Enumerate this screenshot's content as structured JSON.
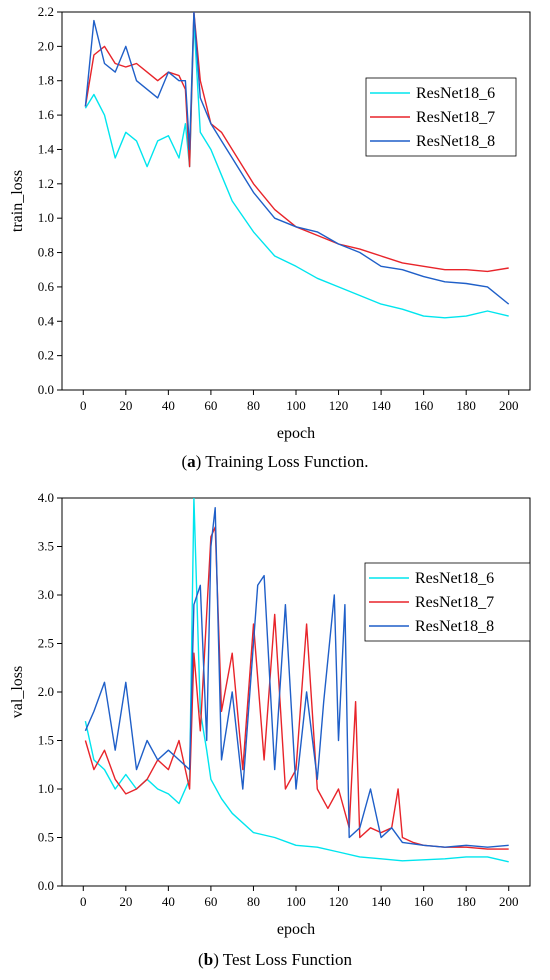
{
  "captions": [
    {
      "tag": "a",
      "text": "Training Loss Function."
    },
    {
      "tag": "b",
      "text": "Test Loss Function"
    }
  ],
  "series_colors": {
    "ResNet18_6": "#00e5ee",
    "ResNet18_7": "#e8242a",
    "ResNet18_8": "#1f5fc8"
  },
  "chart_data": [
    {
      "type": "line",
      "title": "",
      "xlabel": "epoch",
      "ylabel": "train_loss",
      "xlim": [
        -10,
        210
      ],
      "ylim": [
        0,
        2.2
      ],
      "xticks": [
        0,
        20,
        40,
        60,
        80,
        100,
        120,
        140,
        160,
        180,
        200
      ],
      "yticks": [
        0.0,
        0.2,
        0.4,
        0.6,
        0.8,
        1.0,
        1.2,
        1.4,
        1.6,
        1.8,
        2.0,
        2.2
      ],
      "legend": "top-right",
      "grid": false,
      "series": [
        {
          "name": "ResNet18_6",
          "x": [
            1,
            5,
            10,
            15,
            20,
            25,
            30,
            35,
            40,
            45,
            48,
            50,
            52,
            55,
            60,
            65,
            70,
            80,
            90,
            100,
            110,
            120,
            130,
            140,
            150,
            160,
            170,
            180,
            190,
            200
          ],
          "y": [
            1.64,
            1.72,
            1.6,
            1.35,
            1.5,
            1.45,
            1.3,
            1.45,
            1.48,
            1.35,
            1.55,
            1.3,
            2.15,
            1.5,
            1.4,
            1.25,
            1.1,
            0.92,
            0.78,
            0.72,
            0.65,
            0.6,
            0.55,
            0.5,
            0.47,
            0.43,
            0.42,
            0.43,
            0.46,
            0.43
          ]
        },
        {
          "name": "ResNet18_7",
          "x": [
            1,
            5,
            10,
            15,
            20,
            25,
            30,
            35,
            40,
            45,
            48,
            50,
            52,
            55,
            60,
            65,
            70,
            80,
            90,
            100,
            110,
            120,
            130,
            140,
            150,
            160,
            170,
            180,
            190,
            200
          ],
          "y": [
            1.65,
            1.95,
            2.0,
            1.9,
            1.88,
            1.9,
            1.85,
            1.8,
            1.85,
            1.83,
            1.75,
            1.3,
            2.2,
            1.8,
            1.55,
            1.5,
            1.4,
            1.2,
            1.05,
            0.95,
            0.9,
            0.85,
            0.82,
            0.78,
            0.74,
            0.72,
            0.7,
            0.7,
            0.69,
            0.71
          ]
        },
        {
          "name": "ResNet18_8",
          "x": [
            1,
            5,
            10,
            15,
            20,
            25,
            30,
            35,
            40,
            45,
            48,
            50,
            52,
            55,
            60,
            65,
            70,
            80,
            90,
            100,
            110,
            120,
            130,
            140,
            150,
            160,
            170,
            180,
            190,
            200
          ],
          "y": [
            1.65,
            2.15,
            1.9,
            1.85,
            2.0,
            1.8,
            1.75,
            1.7,
            1.85,
            1.8,
            1.8,
            1.4,
            2.2,
            1.7,
            1.55,
            1.45,
            1.35,
            1.15,
            1.0,
            0.95,
            0.92,
            0.85,
            0.8,
            0.72,
            0.7,
            0.66,
            0.63,
            0.62,
            0.6,
            0.5
          ]
        }
      ]
    },
    {
      "type": "line",
      "title": "",
      "xlabel": "epoch",
      "ylabel": "val_loss",
      "xlim": [
        -10,
        210
      ],
      "ylim": [
        0,
        4.0
      ],
      "xticks": [
        0,
        20,
        40,
        60,
        80,
        100,
        120,
        140,
        160,
        180,
        200
      ],
      "yticks": [
        0.0,
        0.5,
        1.0,
        1.5,
        2.0,
        2.5,
        3.0,
        3.5,
        4.0
      ],
      "legend": "top-right",
      "grid": false,
      "series": [
        {
          "name": "ResNet18_6",
          "x": [
            1,
            5,
            10,
            15,
            20,
            25,
            30,
            35,
            40,
            45,
            50,
            52,
            55,
            58,
            60,
            65,
            70,
            80,
            90,
            100,
            110,
            120,
            130,
            140,
            150,
            160,
            170,
            180,
            190,
            200
          ],
          "y": [
            1.7,
            1.3,
            1.2,
            1.0,
            1.15,
            1.0,
            1.1,
            1.0,
            0.95,
            0.85,
            1.1,
            4.0,
            1.8,
            1.4,
            1.1,
            0.9,
            0.75,
            0.55,
            0.5,
            0.42,
            0.4,
            0.35,
            0.3,
            0.28,
            0.26,
            0.27,
            0.28,
            0.3,
            0.3,
            0.25
          ]
        },
        {
          "name": "ResNet18_7",
          "x": [
            1,
            5,
            10,
            15,
            20,
            25,
            30,
            35,
            40,
            45,
            50,
            52,
            55,
            60,
            62,
            65,
            70,
            75,
            80,
            85,
            90,
            95,
            100,
            105,
            110,
            115,
            120,
            125,
            128,
            130,
            135,
            140,
            145,
            148,
            150,
            155,
            160,
            170,
            180,
            190,
            200
          ],
          "y": [
            1.5,
            1.2,
            1.4,
            1.1,
            0.95,
            1.0,
            1.1,
            1.3,
            1.2,
            1.5,
            1.0,
            2.4,
            1.6,
            3.6,
            3.7,
            1.8,
            2.4,
            1.2,
            2.7,
            1.3,
            2.8,
            1.0,
            1.2,
            2.7,
            1.0,
            0.8,
            1.0,
            0.6,
            1.9,
            0.5,
            0.6,
            0.55,
            0.6,
            1.0,
            0.5,
            0.45,
            0.42,
            0.4,
            0.4,
            0.38,
            0.38
          ]
        },
        {
          "name": "ResNet18_8",
          "x": [
            1,
            5,
            10,
            15,
            20,
            25,
            30,
            35,
            40,
            45,
            50,
            52,
            55,
            58,
            60,
            62,
            65,
            70,
            75,
            82,
            85,
            90,
            95,
            100,
            105,
            110,
            113,
            118,
            120,
            123,
            125,
            130,
            135,
            140,
            145,
            150,
            160,
            170,
            180,
            190,
            200
          ],
          "y": [
            1.6,
            1.8,
            2.1,
            1.4,
            2.1,
            1.2,
            1.5,
            1.3,
            1.4,
            1.3,
            1.2,
            2.9,
            3.1,
            1.5,
            3.5,
            3.9,
            1.3,
            2.0,
            1.0,
            3.1,
            3.2,
            1.2,
            2.9,
            1.0,
            2.0,
            1.1,
            1.9,
            3.0,
            1.5,
            2.9,
            0.5,
            0.6,
            1.0,
            0.5,
            0.6,
            0.45,
            0.42,
            0.4,
            0.42,
            0.4,
            0.42
          ]
        }
      ]
    }
  ]
}
